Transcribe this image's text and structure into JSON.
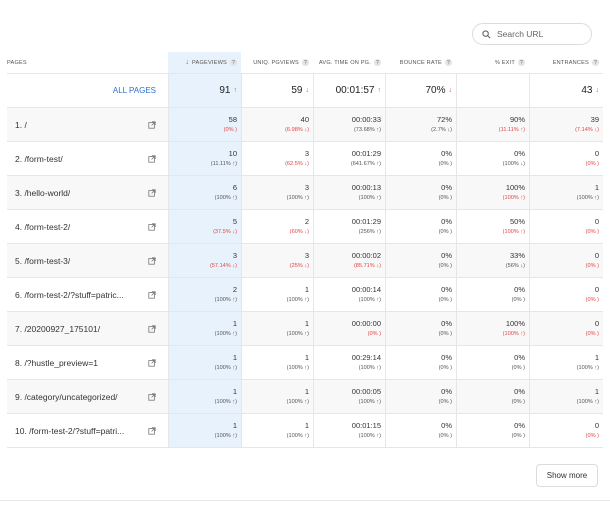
{
  "search": {
    "placeholder": "Search URL"
  },
  "headers": {
    "pages": "Pages",
    "pageviews": "Pageviews",
    "uniq_pageviews": "Uniq. Pgviews",
    "avg_time": "Avg. Time on pg.",
    "bounce_rate": "Bounce Rate",
    "exit": "% Exit",
    "entrances": "Entrances"
  },
  "all_pages": {
    "label": "ALL PAGES",
    "pageviews": "91",
    "pageviews_trend": "up",
    "uniq": "59",
    "uniq_trend": "down",
    "avg_time": "00:01:57",
    "avg_time_trend": "up",
    "bounce": "70%",
    "bounce_trend": "down",
    "exit": "",
    "entrances": "43",
    "entrances_trend": "down"
  },
  "rows": [
    {
      "page": "1. /",
      "pv": "58",
      "pv_d": "(0% )",
      "pv_t": "down",
      "up": "40",
      "up_d": "(6.98% ↓)",
      "up_t": "down",
      "t": "00:00:33",
      "t_d": "(73.68% ↑)",
      "t_t": "neu",
      "b": "72%",
      "b_d": "(2.7% ↓)",
      "b_t": "neu",
      "e": "90%",
      "e_d": "(11.11% ↑)",
      "e_t": "down",
      "en": "39",
      "en_d": "(7.14% ↓)",
      "en_t": "down"
    },
    {
      "page": "2. /form-test/",
      "pv": "10",
      "pv_d": "(11.11% ↑)",
      "pv_t": "neu",
      "up": "3",
      "up_d": "(62.5% ↓)",
      "up_t": "down",
      "t": "00:01:29",
      "t_d": "(641.67% ↑)",
      "t_t": "neu",
      "b": "0%",
      "b_d": "(0% )",
      "b_t": "neu",
      "e": "0%",
      "e_d": "(100% ↓)",
      "e_t": "neu",
      "en": "0",
      "en_d": "(0% )",
      "en_t": "down"
    },
    {
      "page": "3. /hello-world/",
      "pv": "6",
      "pv_d": "(100% ↑)",
      "pv_t": "neu",
      "up": "3",
      "up_d": "(100% ↑)",
      "up_t": "neu",
      "t": "00:00:13",
      "t_d": "(100% ↑)",
      "t_t": "neu",
      "b": "0%",
      "b_d": "(0% )",
      "b_t": "neu",
      "e": "100%",
      "e_d": "(100% ↑)",
      "e_t": "down",
      "en": "1",
      "en_d": "(100% ↑)",
      "en_t": "neu"
    },
    {
      "page": "4. /form-test-2/",
      "pv": "5",
      "pv_d": "(37.5% ↓)",
      "pv_t": "down",
      "up": "2",
      "up_d": "(60% ↓)",
      "up_t": "down",
      "t": "00:01:29",
      "t_d": "(256% ↑)",
      "t_t": "neu",
      "b": "0%",
      "b_d": "(0% )",
      "b_t": "neu",
      "e": "50%",
      "e_d": "(100% ↑)",
      "e_t": "down",
      "en": "0",
      "en_d": "(0% )",
      "en_t": "down"
    },
    {
      "page": "5. /form-test-3/",
      "pv": "3",
      "pv_d": "(57.14% ↓)",
      "pv_t": "down",
      "up": "3",
      "up_d": "(25% ↓)",
      "up_t": "down",
      "t": "00:00:02",
      "t_d": "(85.71% ↓)",
      "t_t": "down",
      "b": "0%",
      "b_d": "(0% )",
      "b_t": "neu",
      "e": "33%",
      "e_d": "(56% ↓)",
      "e_t": "neu",
      "en": "0",
      "en_d": "(0% )",
      "en_t": "down"
    },
    {
      "page": "6. /form-test-2/?stuff=patric...",
      "pv": "2",
      "pv_d": "(100% ↑)",
      "pv_t": "neu",
      "up": "1",
      "up_d": "(100% ↑)",
      "up_t": "neu",
      "t": "00:00:14",
      "t_d": "(100% ↑)",
      "t_t": "neu",
      "b": "0%",
      "b_d": "(0% )",
      "b_t": "neu",
      "e": "0%",
      "e_d": "(0% )",
      "e_t": "neu",
      "en": "0",
      "en_d": "(0% )",
      "en_t": "down"
    },
    {
      "page": "7. /20200927_175101/",
      "pv": "1",
      "pv_d": "(100% ↑)",
      "pv_t": "neu",
      "up": "1",
      "up_d": "(100% ↑)",
      "up_t": "neu",
      "t": "00:00:00",
      "t_d": "(0% )",
      "t_t": "down",
      "b": "0%",
      "b_d": "(0% )",
      "b_t": "neu",
      "e": "100%",
      "e_d": "(100% ↑)",
      "e_t": "down",
      "en": "0",
      "en_d": "(0% )",
      "en_t": "down"
    },
    {
      "page": "8. /?hustle_preview=1",
      "pv": "1",
      "pv_d": "(100% ↑)",
      "pv_t": "neu",
      "up": "1",
      "up_d": "(100% ↑)",
      "up_t": "neu",
      "t": "00:29:14",
      "t_d": "(100% ↑)",
      "t_t": "neu",
      "b": "0%",
      "b_d": "(0% )",
      "b_t": "neu",
      "e": "0%",
      "e_d": "(0% )",
      "e_t": "neu",
      "en": "1",
      "en_d": "(100% ↑)",
      "en_t": "neu"
    },
    {
      "page": "9. /category/uncategorized/",
      "pv": "1",
      "pv_d": "(100% ↑)",
      "pv_t": "neu",
      "up": "1",
      "up_d": "(100% ↑)",
      "up_t": "neu",
      "t": "00:00:05",
      "t_d": "(100% ↑)",
      "t_t": "neu",
      "b": "0%",
      "b_d": "(0% )",
      "b_t": "neu",
      "e": "0%",
      "e_d": "(0% )",
      "e_t": "neu",
      "en": "1",
      "en_d": "(100% ↑)",
      "en_t": "neu"
    },
    {
      "page": "10. /form-test-2/?stuff=patri...",
      "pv": "1",
      "pv_d": "(100% ↑)",
      "pv_t": "neu",
      "up": "1",
      "up_d": "(100% ↑)",
      "up_t": "neu",
      "t": "00:01:15",
      "t_d": "(100% ↑)",
      "t_t": "neu",
      "b": "0%",
      "b_d": "(0% )",
      "b_t": "neu",
      "e": "0%",
      "e_d": "(0% )",
      "e_t": "neu",
      "en": "0",
      "en_d": "(0% )",
      "en_t": "down"
    }
  ],
  "show_more_label": "Show more",
  "colors": {
    "accent": "#2f6fd1",
    "sorted_bg": "#e8f2fc",
    "down": "#e14545",
    "up": "#2fa84f"
  }
}
